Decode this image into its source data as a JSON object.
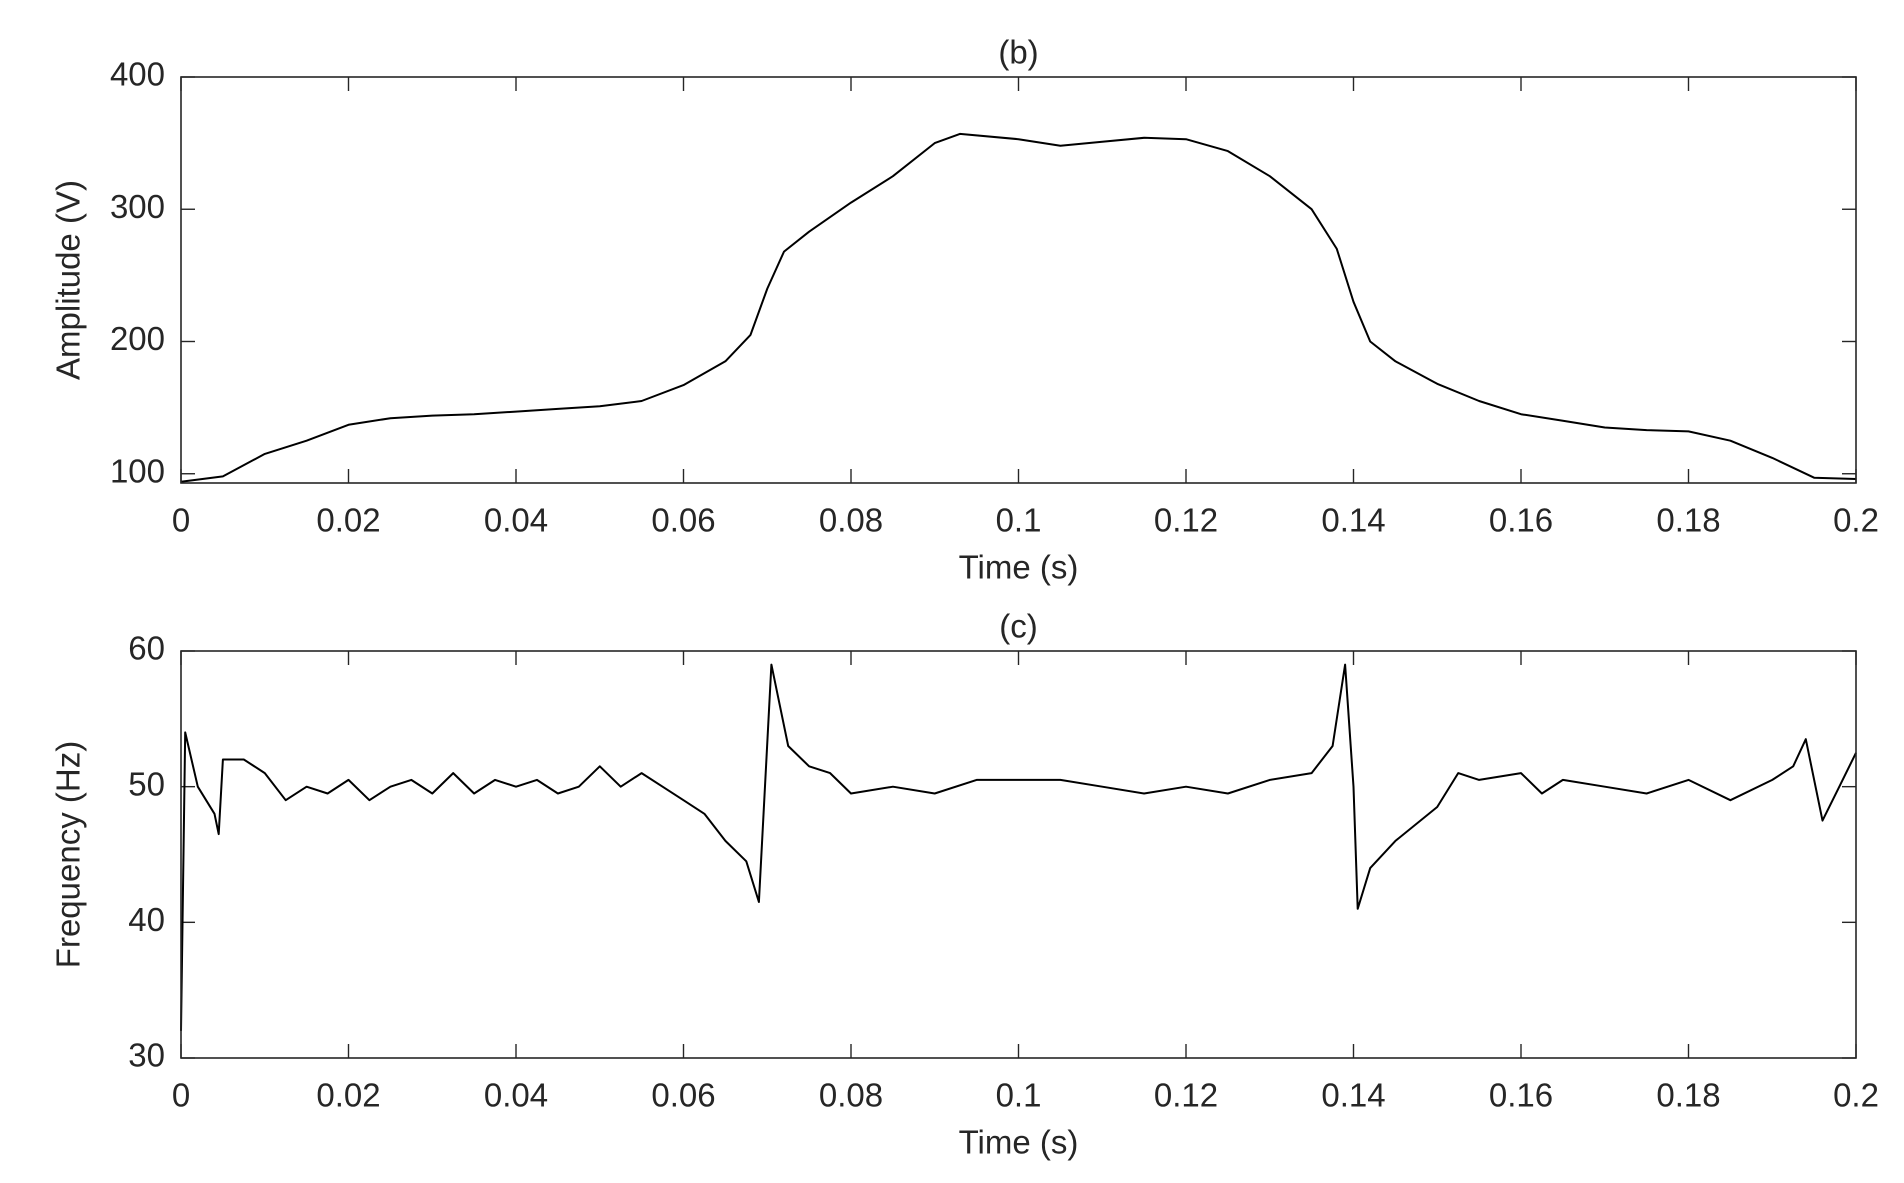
{
  "chart_data": [
    {
      "type": "line",
      "title": "(b)",
      "xlabel": "Time (s)",
      "ylabel": "Amplitude (V)",
      "color": "#000000",
      "xlim": [
        0,
        0.2
      ],
      "ylim": [
        93,
        400
      ],
      "xticks": [
        0,
        0.02,
        0.04,
        0.06,
        0.08,
        0.1,
        0.12,
        0.14,
        0.16,
        0.18,
        0.2
      ],
      "yticks": [
        100,
        200,
        300,
        400
      ],
      "x": [
        0,
        0.005,
        0.01,
        0.015,
        0.02,
        0.025,
        0.03,
        0.035,
        0.04,
        0.045,
        0.05,
        0.055,
        0.06,
        0.065,
        0.068,
        0.07,
        0.072,
        0.075,
        0.08,
        0.085,
        0.09,
        0.093,
        0.1,
        0.105,
        0.11,
        0.115,
        0.12,
        0.125,
        0.13,
        0.135,
        0.138,
        0.14,
        0.142,
        0.145,
        0.15,
        0.155,
        0.16,
        0.165,
        0.17,
        0.175,
        0.18,
        0.185,
        0.19,
        0.195,
        0.2
      ],
      "values": [
        94,
        98,
        115,
        125,
        137,
        142,
        144,
        145,
        147,
        149,
        151,
        155,
        167,
        185,
        205,
        240,
        268,
        283,
        305,
        325,
        350,
        357,
        353,
        348,
        351,
        354,
        353,
        344,
        325,
        300,
        270,
        230,
        200,
        185,
        168,
        155,
        145,
        140,
        135,
        133,
        132,
        125,
        112,
        97,
        96
      ]
    },
    {
      "type": "line",
      "title": "(c)",
      "xlabel": "Time (s)",
      "ylabel": "Frequency (Hz)",
      "color": "#000000",
      "xlim": [
        0,
        0.2
      ],
      "ylim": [
        30,
        60
      ],
      "xticks": [
        0,
        0.02,
        0.04,
        0.06,
        0.08,
        0.1,
        0.12,
        0.14,
        0.16,
        0.18,
        0.2
      ],
      "yticks": [
        30,
        40,
        50,
        60
      ],
      "x": [
        0,
        0.0005,
        0.002,
        0.004,
        0.0045,
        0.005,
        0.0075,
        0.01,
        0.0125,
        0.015,
        0.0175,
        0.02,
        0.0225,
        0.025,
        0.0275,
        0.03,
        0.0325,
        0.035,
        0.0375,
        0.04,
        0.0425,
        0.045,
        0.0475,
        0.05,
        0.0525,
        0.055,
        0.0575,
        0.06,
        0.0625,
        0.065,
        0.0675,
        0.069,
        0.0705,
        0.0715,
        0.0725,
        0.075,
        0.0775,
        0.08,
        0.085,
        0.09,
        0.095,
        0.1,
        0.105,
        0.11,
        0.115,
        0.12,
        0.125,
        0.13,
        0.135,
        0.1375,
        0.139,
        0.14,
        0.1405,
        0.142,
        0.145,
        0.15,
        0.1525,
        0.155,
        0.16,
        0.1625,
        0.165,
        0.17,
        0.175,
        0.18,
        0.185,
        0.19,
        0.1925,
        0.194,
        0.196,
        0.198,
        0.2
      ],
      "values": [
        32,
        54,
        50,
        48,
        46.5,
        52,
        52,
        51,
        49,
        50,
        49.5,
        50.5,
        49,
        50,
        50.5,
        49.5,
        51,
        49.5,
        50.5,
        50,
        50.5,
        49.5,
        50,
        51.5,
        50,
        51,
        50,
        49,
        48,
        46,
        44.5,
        41.5,
        59,
        56,
        53,
        51.5,
        51,
        49.5,
        50,
        49.5,
        50.5,
        50.5,
        50.5,
        50,
        49.5,
        50,
        49.5,
        50.5,
        51,
        53,
        59,
        50,
        41,
        44,
        46,
        48.5,
        51,
        50.5,
        51,
        49.5,
        50.5,
        50,
        49.5,
        50.5,
        49,
        50.5,
        51.5,
        53.5,
        47.5,
        50,
        52.5
      ]
    }
  ]
}
